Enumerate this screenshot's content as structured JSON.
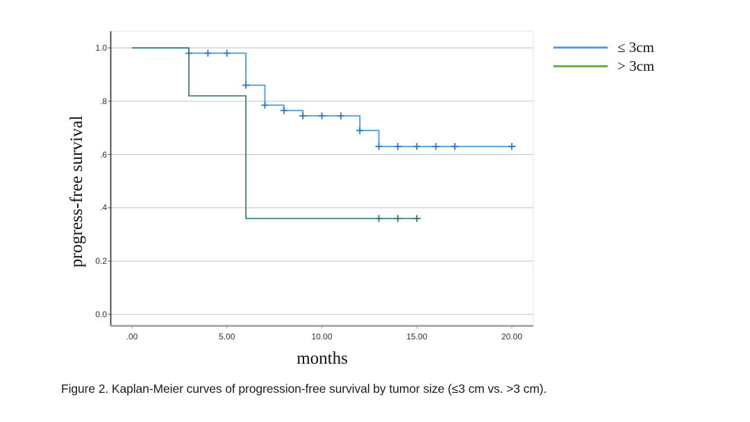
{
  "figure": {
    "caption": "Figure 2. Kaplan-Meier curves of progression-free survival by tumor size (≤3 cm vs. >3 cm)."
  },
  "chart_data": {
    "type": "line",
    "subtype": "kaplan_meier_step",
    "title": "",
    "xlabel": "months",
    "ylabel": "progress-free survival",
    "xlim": [
      -1.12,
      21.15
    ],
    "ylim": [
      -0.04,
      1.06
    ],
    "grid": "horizontal-only",
    "x_ticks": [
      {
        "value": 0,
        "label": ".00"
      },
      {
        "value": 5,
        "label": "5.00"
      },
      {
        "value": 10,
        "label": "10.00"
      },
      {
        "value": 15,
        "label": "15.00"
      },
      {
        "value": 20,
        "label": "20.00"
      }
    ],
    "y_ticks": [
      {
        "value": 1.0,
        "label": "1.0"
      },
      {
        "value": 0.8,
        "label": ".8"
      },
      {
        "value": 0.6,
        "label": ".6"
      },
      {
        "value": 0.4,
        "label": ".4"
      },
      {
        "value": 0.2,
        "label": "0.2"
      },
      {
        "value": 0.0,
        "label": "0.0"
      }
    ],
    "legend": {
      "position": "top-right-outside",
      "entries": [
        {
          "label": "≤ 3cm",
          "color": "#5C9CE5"
        },
        {
          "label": "> 3cm",
          "color": "#69AC4A"
        }
      ]
    },
    "series": [
      {
        "name": "≤ 3cm",
        "color": "#54A4E4",
        "censor_color": "#2878CC",
        "line_width": 2,
        "steps": [
          [
            0,
            1.0
          ],
          [
            3,
            1.0
          ],
          [
            3,
            0.98
          ],
          [
            6,
            0.98
          ],
          [
            6,
            0.86
          ],
          [
            7,
            0.86
          ],
          [
            7,
            0.785
          ],
          [
            8,
            0.785
          ],
          [
            8,
            0.765
          ],
          [
            9,
            0.765
          ],
          [
            9,
            0.745
          ],
          [
            12,
            0.745
          ],
          [
            12,
            0.69
          ],
          [
            13,
            0.69
          ],
          [
            13,
            0.63
          ],
          [
            20.2,
            0.63
          ]
        ],
        "censors": [
          [
            3,
            0.98
          ],
          [
            4,
            0.98
          ],
          [
            5,
            0.98
          ],
          [
            6,
            0.86
          ],
          [
            7,
            0.785
          ],
          [
            8,
            0.765
          ],
          [
            9,
            0.745
          ],
          [
            10,
            0.745
          ],
          [
            11,
            0.745
          ],
          [
            12,
            0.69
          ],
          [
            13,
            0.63
          ],
          [
            14,
            0.63
          ],
          [
            15,
            0.63
          ],
          [
            16,
            0.63
          ],
          [
            17,
            0.63
          ],
          [
            20,
            0.63
          ]
        ]
      },
      {
        "name": "> 3cm",
        "color": "#3E807B",
        "censor_color": "#2D7672",
        "line_width": 1.8,
        "steps": [
          [
            0,
            1.0
          ],
          [
            3,
            1.0
          ],
          [
            3,
            0.82
          ],
          [
            6,
            0.82
          ],
          [
            6,
            0.36
          ],
          [
            15.2,
            0.36
          ]
        ],
        "censors": [
          [
            13,
            0.36
          ],
          [
            14,
            0.36
          ],
          [
            15,
            0.36
          ]
        ]
      }
    ]
  },
  "colors": {
    "background": "#ffffff",
    "grid": "#cacaca",
    "frame": "#e3e3e3",
    "spine_left": "#404040",
    "spine_bottom": "#9e9e9e",
    "tick_text": "#2e2e2e",
    "text": "#111111"
  }
}
